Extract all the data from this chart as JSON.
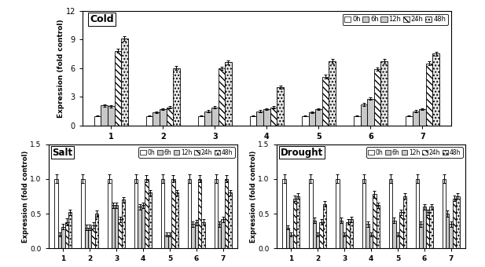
{
  "cold": {
    "title": "Cold",
    "ylabel": "Expression (fold control)",
    "ylim": [
      0,
      12
    ],
    "yticks": [
      0,
      3,
      6,
      9,
      12
    ],
    "values": [
      [
        1.0,
        2.1,
        2.0,
        7.8,
        9.1
      ],
      [
        1.0,
        1.4,
        1.7,
        1.9,
        6.0
      ],
      [
        1.0,
        1.5,
        1.9,
        6.0,
        6.6
      ],
      [
        1.0,
        1.5,
        1.7,
        1.9,
        4.0
      ],
      [
        1.0,
        1.4,
        1.7,
        5.1,
        6.7
      ],
      [
        1.0,
        2.2,
        2.8,
        5.9,
        6.7
      ],
      [
        1.0,
        1.5,
        1.7,
        6.5,
        7.5
      ]
    ],
    "errors": [
      [
        0.05,
        0.12,
        0.12,
        0.2,
        0.28
      ],
      [
        0.05,
        0.1,
        0.1,
        0.12,
        0.22
      ],
      [
        0.05,
        0.1,
        0.1,
        0.18,
        0.22
      ],
      [
        0.05,
        0.1,
        0.1,
        0.12,
        0.18
      ],
      [
        0.05,
        0.1,
        0.1,
        0.18,
        0.22
      ],
      [
        0.05,
        0.13,
        0.13,
        0.18,
        0.22
      ],
      [
        0.05,
        0.1,
        0.1,
        0.18,
        0.22
      ]
    ]
  },
  "salt": {
    "title": "Salt",
    "ylabel": "Expression (fold control)",
    "ylim": [
      0,
      1.5
    ],
    "yticks": [
      0,
      0.5,
      1.0,
      1.5
    ],
    "values": [
      [
        1.0,
        0.2,
        0.31,
        0.38,
        0.52
      ],
      [
        1.0,
        0.3,
        0.3,
        0.33,
        0.5
      ],
      [
        1.0,
        0.62,
        0.62,
        0.42,
        0.7
      ],
      [
        1.0,
        0.6,
        0.62,
        1.0,
        0.8
      ],
      [
        1.0,
        0.2,
        0.2,
        1.0,
        0.8
      ],
      [
        1.0,
        0.35,
        0.37,
        1.0,
        0.38
      ],
      [
        1.0,
        0.35,
        0.42,
        1.0,
        0.8
      ]
    ],
    "errors": [
      [
        0.06,
        0.03,
        0.04,
        0.05,
        0.04
      ],
      [
        0.06,
        0.04,
        0.04,
        0.04,
        0.04
      ],
      [
        0.06,
        0.04,
        0.04,
        0.04,
        0.04
      ],
      [
        0.06,
        0.04,
        0.04,
        0.05,
        0.04
      ],
      [
        0.06,
        0.03,
        0.03,
        0.05,
        0.04
      ],
      [
        0.06,
        0.04,
        0.04,
        0.05,
        0.04
      ],
      [
        0.06,
        0.04,
        0.04,
        0.05,
        0.04
      ]
    ]
  },
  "drought": {
    "title": "Drought",
    "ylabel": "Expression (fold control)",
    "ylim": [
      0,
      1.5
    ],
    "yticks": [
      0,
      0.5,
      1.0,
      1.5
    ],
    "values": [
      [
        1.0,
        0.3,
        0.2,
        0.72,
        0.75
      ],
      [
        1.0,
        0.4,
        0.2,
        0.38,
        0.64
      ],
      [
        1.0,
        0.4,
        0.2,
        0.38,
        0.42
      ],
      [
        1.0,
        0.35,
        0.2,
        0.78,
        0.62
      ],
      [
        1.0,
        0.4,
        0.2,
        0.52,
        0.75
      ],
      [
        1.0,
        0.35,
        0.6,
        0.52,
        0.6
      ],
      [
        1.0,
        0.5,
        0.35,
        0.72,
        0.75
      ]
    ],
    "errors": [
      [
        0.06,
        0.03,
        0.03,
        0.04,
        0.04
      ],
      [
        0.06,
        0.04,
        0.03,
        0.04,
        0.04
      ],
      [
        0.06,
        0.04,
        0.03,
        0.04,
        0.04
      ],
      [
        0.06,
        0.04,
        0.03,
        0.05,
        0.04
      ],
      [
        0.06,
        0.04,
        0.03,
        0.04,
        0.04
      ],
      [
        0.06,
        0.04,
        0.04,
        0.04,
        0.04
      ],
      [
        0.06,
        0.04,
        0.04,
        0.04,
        0.04
      ]
    ]
  },
  "time_labels": [
    "0h",
    "6h",
    "12h",
    "24h",
    "48h"
  ],
  "bar_colors": [
    "white",
    "#c8c8c8",
    "#c8c8c8",
    "white",
    "#e8e8e8"
  ],
  "bar_hatches": [
    "",
    "",
    "",
    "\\\\\\\\",
    "...."
  ],
  "bar_edgecolor": "black"
}
